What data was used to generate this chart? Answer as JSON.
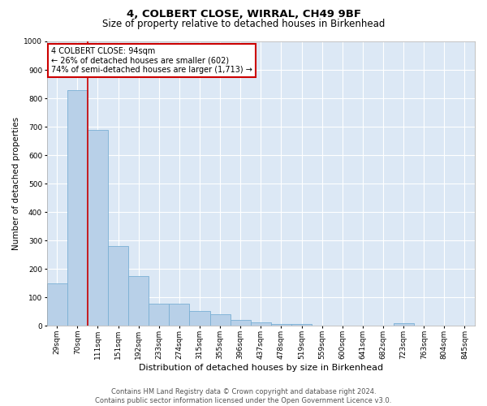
{
  "title": "4, COLBERT CLOSE, WIRRAL, CH49 9BF",
  "subtitle": "Size of property relative to detached houses in Birkenhead",
  "xlabel": "Distribution of detached houses by size in Birkenhead",
  "ylabel": "Number of detached properties",
  "categories": [
    "29sqm",
    "70sqm",
    "111sqm",
    "151sqm",
    "192sqm",
    "233sqm",
    "274sqm",
    "315sqm",
    "355sqm",
    "396sqm",
    "437sqm",
    "478sqm",
    "519sqm",
    "559sqm",
    "600sqm",
    "641sqm",
    "682sqm",
    "723sqm",
    "763sqm",
    "804sqm",
    "845sqm"
  ],
  "values": [
    150,
    830,
    690,
    280,
    175,
    78,
    78,
    52,
    40,
    20,
    12,
    8,
    8,
    0,
    0,
    0,
    0,
    10,
    0,
    0,
    0
  ],
  "bar_color": "#b8d0e8",
  "bar_edge_color": "#7aafd4",
  "vline_color": "#cc0000",
  "vline_x": 1.5,
  "annotation_text": "4 COLBERT CLOSE: 94sqm\n← 26% of detached houses are smaller (602)\n74% of semi-detached houses are larger (1,713) →",
  "annotation_box_color": "#ffffff",
  "annotation_box_edge": "#cc0000",
  "ylim": [
    0,
    1000
  ],
  "yticks": [
    0,
    100,
    200,
    300,
    400,
    500,
    600,
    700,
    800,
    900,
    1000
  ],
  "plot_bg_color": "#dce8f5",
  "grid_color": "#ffffff",
  "fig_bg_color": "#ffffff",
  "footer_line1": "Contains HM Land Registry data © Crown copyright and database right 2024.",
  "footer_line2": "Contains public sector information licensed under the Open Government Licence v3.0.",
  "title_fontsize": 9.5,
  "subtitle_fontsize": 8.5,
  "xlabel_fontsize": 8,
  "ylabel_fontsize": 7.5,
  "tick_fontsize": 6.5,
  "annot_fontsize": 7,
  "footer_fontsize": 6
}
